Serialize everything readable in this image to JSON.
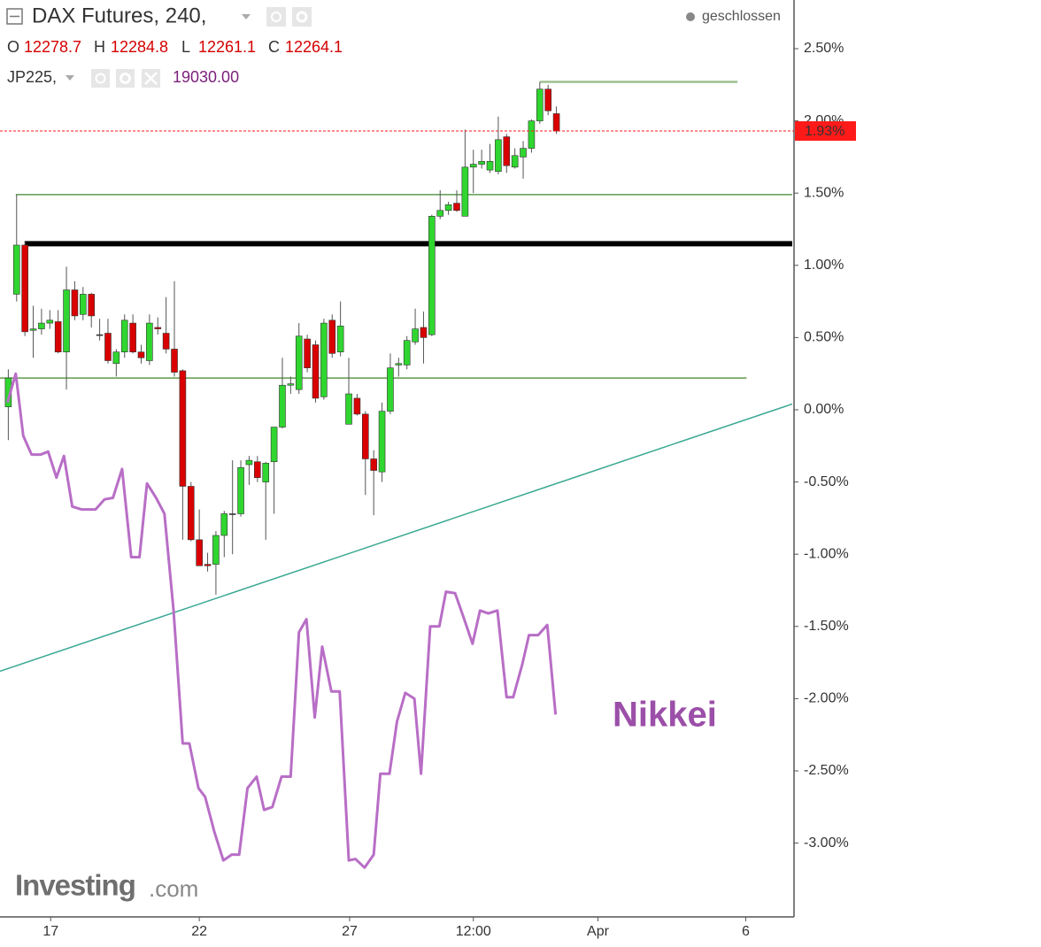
{
  "header": {
    "title": "DAX Futures, 240,",
    "status": "geschlossen",
    "ohlc": [
      {
        "label": "O",
        "value": "12278.7"
      },
      {
        "label": "H",
        "value": "12284.8"
      },
      {
        "label": "L",
        "value": "12261.1"
      },
      {
        "label": "C",
        "value": "12264.1"
      }
    ],
    "compare": {
      "symbol": "JP225,",
      "value": "19030.00"
    }
  },
  "logo": {
    "brand": "Investing",
    "suffix": ".com"
  },
  "chart_data": {
    "type": "candlestick",
    "xlim": [
      -1,
      94.4
    ],
    "xticks": [
      {
        "value": 5.1,
        "label": "17"
      },
      {
        "value": 23,
        "label": "22"
      },
      {
        "value": 41.1,
        "label": "27"
      },
      {
        "value": 56,
        "label": "12:00"
      },
      {
        "value": 71,
        "label": "Apr"
      },
      {
        "value": 88.8,
        "label": "6"
      }
    ],
    "ylim": [
      -3.505,
      2.837
    ],
    "yticks": [
      {
        "value": 2.5,
        "label": "2.50%"
      },
      {
        "value": 2,
        "label": "2.00%"
      },
      {
        "value": 1.5,
        "label": "1.50%"
      },
      {
        "value": 1,
        "label": "1.00%"
      },
      {
        "value": 0.5,
        "label": "0.50%"
      },
      {
        "value": 0,
        "label": "0.00%"
      },
      {
        "value": -0.5,
        "label": "-0.50%"
      },
      {
        "value": -1,
        "label": "-1.00%"
      },
      {
        "value": -1.5,
        "label": "-1.50%"
      },
      {
        "value": -2,
        "label": "-2.00%"
      },
      {
        "value": -2.5,
        "label": "-2.50%"
      },
      {
        "value": -3,
        "label": "-3.00%"
      }
    ],
    "series": [
      {
        "type": "candlestick",
        "color_up": "#2fd62f",
        "color_down": "#d90000",
        "x": [
          0,
          1,
          2,
          3,
          4,
          5,
          6,
          7,
          8,
          9,
          10,
          11,
          12,
          13,
          14,
          15,
          16,
          17,
          18,
          19,
          20,
          21,
          22,
          23,
          24,
          25,
          26,
          27,
          28,
          29,
          30,
          31,
          32,
          33,
          34,
          35,
          36,
          37,
          38,
          39,
          40,
          41,
          42,
          43,
          44,
          45,
          46,
          47,
          48,
          49,
          50,
          51,
          52,
          53,
          54,
          55,
          56,
          57,
          58,
          59,
          60,
          61,
          62,
          63,
          64,
          65,
          66
        ],
        "open": [
          0.02,
          0.8,
          1.14,
          0.55,
          0.56,
          0.6,
          0.61,
          0.4,
          0.83,
          0.66,
          0.8,
          0.52,
          0.53,
          0.32,
          0.4,
          0.6,
          0.4,
          0.34,
          0.57,
          0.53,
          0.42,
          0.27,
          -0.53,
          -0.9,
          -1.07,
          -1.07,
          -0.87,
          -0.72,
          -0.72,
          -0.38,
          -0.36,
          -0.5,
          -0.36,
          -0.12,
          0.17,
          0.14,
          0.49,
          0.45,
          0.09,
          0.62,
          0.4,
          -0.1,
          0.08,
          -0.03,
          -0.34,
          -0.43,
          -0.01,
          0.31,
          0.31,
          0.47,
          0.57,
          0.52,
          1.34,
          1.38,
          1.43,
          1.34,
          1.68,
          1.7,
          1.66,
          1.65,
          1.89,
          1.68,
          1.75,
          1.81,
          2.0,
          2.22,
          2.05
        ],
        "high": [
          0.28,
          1.49,
          1.17,
          0.72,
          0.7,
          0.69,
          0.69,
          0.99,
          0.89,
          0.85,
          0.81,
          0.63,
          0.63,
          0.42,
          0.66,
          0.66,
          0.45,
          0.66,
          0.64,
          0.78,
          0.89,
          0.28,
          -0.5,
          -0.69,
          -0.99,
          -0.84,
          -0.7,
          -0.35,
          -0.35,
          -0.32,
          -0.32,
          -0.36,
          -0.12,
          0.36,
          0.23,
          0.6,
          0.52,
          0.48,
          0.63,
          0.66,
          0.75,
          0.36,
          0.11,
          -0.01,
          -0.28,
          0.05,
          0.39,
          0.36,
          0.51,
          0.7,
          0.68,
          1.35,
          1.52,
          1.44,
          1.52,
          1.94,
          1.8,
          1.8,
          1.84,
          2.03,
          1.91,
          1.81,
          1.86,
          2.01,
          2.27,
          2.25,
          2.1
        ],
        "low": [
          -0.21,
          0.75,
          0.51,
          0.36,
          0.52,
          0.56,
          0.39,
          0.14,
          0.62,
          0.62,
          0.57,
          0.48,
          0.32,
          0.23,
          0.36,
          0.39,
          0.32,
          0.31,
          0.52,
          0.39,
          0.23,
          -0.9,
          -0.91,
          -1.08,
          -1.12,
          -1.28,
          -1.02,
          -1.0,
          -0.74,
          -0.52,
          -0.5,
          -0.9,
          -0.72,
          -0.13,
          0.11,
          0.11,
          0.26,
          0.05,
          0.07,
          0.36,
          0.37,
          -0.1,
          -0.04,
          -0.59,
          -0.73,
          -0.5,
          -0.03,
          0.23,
          0.28,
          0.45,
          0.32,
          0.51,
          1.32,
          1.35,
          1.37,
          1.34,
          1.5,
          1.67,
          1.64,
          1.63,
          1.64,
          1.67,
          1.6,
          1.78,
          1.98,
          2.04,
          1.91
        ],
        "close": [
          0.22,
          1.14,
          0.54,
          0.56,
          0.6,
          0.62,
          0.4,
          0.83,
          0.65,
          0.8,
          0.65,
          0.52,
          0.34,
          0.4,
          0.62,
          0.4,
          0.36,
          0.6,
          0.56,
          0.42,
          0.26,
          -0.53,
          -0.9,
          -1.08,
          -1.08,
          -0.87,
          -0.72,
          -0.72,
          -0.4,
          -0.35,
          -0.47,
          -0.37,
          -0.12,
          0.17,
          0.18,
          0.51,
          0.29,
          0.08,
          0.6,
          0.39,
          0.58,
          0.11,
          -0.03,
          -0.34,
          -0.42,
          -0.01,
          0.29,
          0.32,
          0.48,
          0.56,
          0.5,
          1.34,
          1.38,
          1.42,
          1.38,
          1.68,
          1.7,
          1.72,
          1.72,
          1.87,
          1.69,
          1.76,
          1.81,
          2.0,
          2.22,
          2.07,
          1.93
        ]
      },
      {
        "type": "line",
        "name": "Nikkei",
        "color": "#b86ec6",
        "x": [
          -0.1,
          0.9,
          1.8,
          2.8,
          3.9,
          4.8,
          5.8,
          6.7,
          7.7,
          8.8,
          10.5,
          11.6,
          12.6,
          13.7,
          14.8,
          15.8,
          16.7,
          17.8,
          18.8,
          19.9,
          21.0,
          21.8,
          22.9,
          23.7,
          24.8,
          25.9,
          26.9,
          27.8,
          28.8,
          29.9,
          30.8,
          31.8,
          32.9,
          34.0,
          35.0,
          35.9,
          36.9,
          37.8,
          38.9,
          39.9,
          41.0,
          41.8,
          42.9,
          44.0,
          44.8,
          45.9,
          46.8,
          47.8,
          48.9,
          49.7,
          50.8,
          51.9,
          52.7,
          53.8,
          54.9,
          55.9,
          56.8,
          57.8,
          58.9,
          60.0,
          60.8,
          61.9,
          62.7,
          63.8,
          64.9,
          65.9
        ],
        "values": [
          0.05,
          0.25,
          -0.18,
          -0.31,
          -0.31,
          -0.29,
          -0.47,
          -0.32,
          -0.67,
          -0.69,
          -0.69,
          -0.62,
          -0.61,
          -0.41,
          -1.02,
          -1.02,
          -0.51,
          -0.61,
          -0.72,
          -1.39,
          -2.31,
          -2.31,
          -2.62,
          -2.68,
          -2.92,
          -3.12,
          -3.08,
          -3.08,
          -2.62,
          -2.54,
          -2.77,
          -2.75,
          -2.54,
          -2.54,
          -1.54,
          -1.45,
          -2.13,
          -1.64,
          -1.95,
          -1.95,
          -3.12,
          -3.11,
          -3.17,
          -3.08,
          -2.52,
          -2.52,
          -2.16,
          -1.96,
          -2.0,
          -2.52,
          -1.5,
          -1.5,
          -1.26,
          -1.27,
          -1.45,
          -1.62,
          -1.39,
          -1.41,
          -1.39,
          -1.99,
          -1.99,
          -1.76,
          -1.56,
          -1.56,
          -1.49,
          -2.11
        ]
      }
    ],
    "drawings": [
      {
        "color": "#5e9a4c",
        "width": 1.5,
        "x": [
          0.9,
          94.4
        ],
        "values": [
          1.49,
          1.49
        ]
      },
      {
        "color": "#000000",
        "width": 6,
        "x": [
          2,
          94.4
        ],
        "values": [
          1.15,
          1.15
        ]
      },
      {
        "color": "#5e9a4c",
        "width": 1.5,
        "x": [
          -1,
          88.9
        ],
        "values": [
          0.22,
          0.22
        ]
      },
      {
        "color": "#9dbf90",
        "width": 2.5,
        "x": [
          64,
          87.8
        ],
        "values": [
          2.27,
          2.27
        ]
      },
      {
        "color": "#3aa892",
        "width": 1.5,
        "x": [
          -1,
          94.4
        ],
        "values": [
          -1.81,
          0.04
        ]
      }
    ],
    "last_price": {
      "value": 1.93,
      "label": "1.93%",
      "color": "#ff1a1a"
    }
  }
}
